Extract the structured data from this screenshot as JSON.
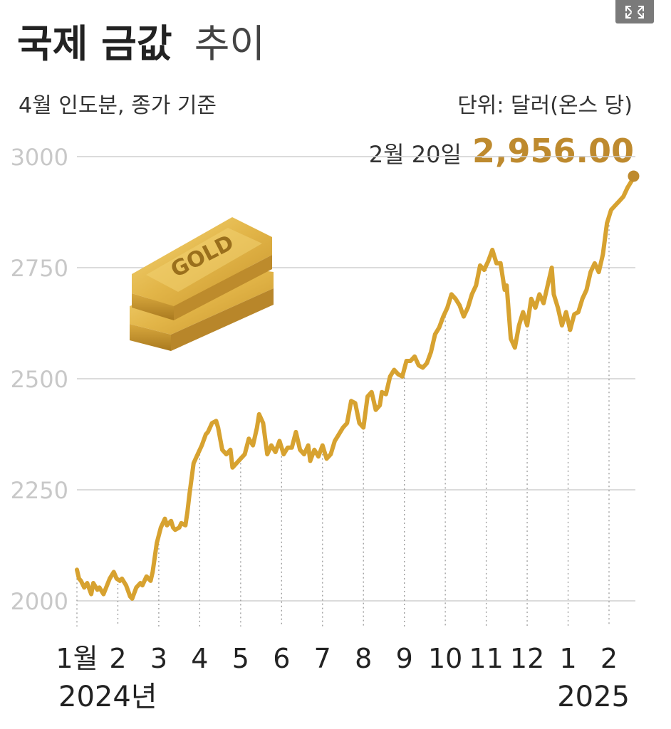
{
  "title": {
    "bold": "국제 금값",
    "light": "추이"
  },
  "subtitle": "4월 인도분, 종가 기준",
  "unit": "단위: 달러(온스 당)",
  "annotation": {
    "date": "2월 20일",
    "value": "2,956.00"
  },
  "illustration": {
    "label": "GOLD"
  },
  "year_labels": {
    "start": "2024년",
    "end": "2025"
  },
  "expand_icon": "expand-arrows-icon",
  "colors": {
    "line": "#d7a230",
    "highlight": "#be8a2e",
    "grid": "#cfcfcf",
    "axis_text": "#c8c8c8",
    "text": "#222222",
    "gold_light": "#e9c35a",
    "gold_dark": "#b5882a"
  },
  "chart_data": {
    "type": "line",
    "title": "국제 금값 추이",
    "subtitle": "4월 인도분, 종가 기준",
    "unit": "단위: 달러(온스 당)",
    "ylim": [
      1900,
      3050
    ],
    "yticks": [
      2000,
      2250,
      2500,
      2750,
      3000
    ],
    "xlim": [
      0,
      13.8
    ],
    "x_tick_labels": [
      "1월",
      "2",
      "3",
      "4",
      "5",
      "6",
      "7",
      "8",
      "9",
      "10",
      "11",
      "12",
      "1",
      "2"
    ],
    "grid": true,
    "series": [
      {
        "x": [
          0.0,
          0.05,
          0.1,
          0.18,
          0.25,
          0.35,
          0.4,
          0.5,
          0.55,
          0.65,
          0.8,
          0.9,
          0.97,
          1.05,
          1.1,
          1.2,
          1.3,
          1.35,
          1.45,
          1.55,
          1.6,
          1.7,
          1.8,
          1.85,
          1.95,
          2.05,
          2.15,
          2.2,
          2.3,
          2.35,
          2.4,
          2.5,
          2.55,
          2.65,
          2.7,
          2.75,
          2.85,
          2.95,
          3.05,
          3.15,
          3.2,
          3.3,
          3.4,
          3.45,
          3.55,
          3.65,
          3.75,
          3.8,
          3.9,
          4.0,
          4.1,
          4.2,
          4.3,
          4.4,
          4.45,
          4.55,
          4.65,
          4.75,
          4.85,
          4.95,
          5.05,
          5.15,
          5.25,
          5.35,
          5.45,
          5.55,
          5.65,
          5.7,
          5.8,
          5.9,
          6.0,
          6.1,
          6.2,
          6.3,
          6.4,
          6.5,
          6.6,
          6.7,
          6.8,
          6.9,
          7.0,
          7.1,
          7.2,
          7.3,
          7.4,
          7.45,
          7.55,
          7.65,
          7.75,
          7.85,
          7.95,
          8.05,
          8.15,
          8.25,
          8.35,
          8.45,
          8.55,
          8.65,
          8.75,
          8.85,
          8.95,
          9.05,
          9.15,
          9.25,
          9.35,
          9.45,
          9.55,
          9.65,
          9.75,
          9.85,
          9.95,
          10.05,
          10.15,
          10.25,
          10.35,
          10.45,
          10.5,
          10.6,
          10.7,
          10.8,
          10.9,
          11.0,
          11.1,
          11.2,
          11.3,
          11.4,
          11.5,
          11.6,
          11.65,
          11.75,
          11.85,
          11.95,
          12.05,
          12.15,
          12.25,
          12.35,
          12.45,
          12.55,
          12.65,
          12.75,
          12.85,
          12.95,
          13.05,
          13.15,
          13.25,
          13.35,
          13.45,
          13.55,
          13.6
        ],
        "y": [
          2070,
          2050,
          2045,
          2030,
          2040,
          2015,
          2040,
          2025,
          2030,
          2015,
          2050,
          2065,
          2050,
          2045,
          2050,
          2035,
          2010,
          2005,
          2030,
          2040,
          2035,
          2055,
          2045,
          2065,
          2130,
          2165,
          2185,
          2170,
          2180,
          2165,
          2160,
          2165,
          2175,
          2170,
          2200,
          2240,
          2310,
          2330,
          2350,
          2375,
          2380,
          2400,
          2405,
          2390,
          2340,
          2330,
          2340,
          2300,
          2310,
          2320,
          2330,
          2365,
          2350,
          2390,
          2420,
          2400,
          2330,
          2350,
          2335,
          2360,
          2330,
          2345,
          2345,
          2380,
          2340,
          2330,
          2350,
          2315,
          2340,
          2325,
          2350,
          2320,
          2330,
          2360,
          2375,
          2390,
          2400,
          2450,
          2445,
          2400,
          2390,
          2460,
          2470,
          2430,
          2440,
          2470,
          2465,
          2505,
          2520,
          2510,
          2505,
          2540,
          2540,
          2550,
          2530,
          2525,
          2535,
          2560,
          2600,
          2615,
          2640,
          2660,
          2690,
          2680,
          2665,
          2640,
          2660,
          2690,
          2710,
          2755,
          2745,
          2765,
          2790,
          2760,
          2760,
          2700,
          2710,
          2590,
          2570,
          2620,
          2650,
          2620,
          2680,
          2660,
          2690,
          2670,
          2710,
          2750,
          2690,
          2660,
          2620,
          2650,
          2610,
          2645,
          2650,
          2680,
          2700,
          2740,
          2760,
          2740,
          2780,
          2850,
          2880,
          2890,
          2900,
          2910,
          2930,
          2945,
          2956
        ]
      }
    ]
  }
}
